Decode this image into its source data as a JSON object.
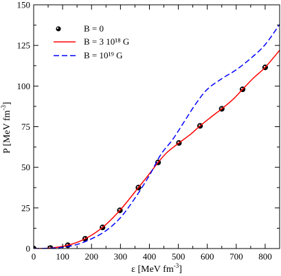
{
  "chart_data": {
    "type": "line",
    "xlabel": "ε [MeV fm⁻³]",
    "ylabel": "P [MeV fm⁻³]",
    "xlim": [
      0,
      850
    ],
    "ylim": [
      0,
      150
    ],
    "xticks": [
      0,
      100,
      200,
      300,
      400,
      500,
      600,
      700,
      800
    ],
    "yticks": [
      0,
      25,
      50,
      75,
      100,
      125,
      150
    ],
    "grid": false,
    "legend_position": "top-left",
    "series": [
      {
        "name": "B = 0",
        "style": "markers",
        "marker": "circle-dot",
        "color": "#000000",
        "x": [
          0,
          58,
          118,
          178,
          238,
          298,
          362,
          430,
          502,
          575,
          650,
          722,
          800
        ],
        "y": [
          0,
          0.3,
          2,
          6,
          13,
          23.5,
          37.5,
          53,
          65,
          75.5,
          86,
          98,
          111.5
        ]
      },
      {
        "name": "B = 3 10¹⁸ G",
        "style": "solid",
        "color": "#ff0000",
        "x": [
          0,
          58,
          118,
          178,
          238,
          298,
          362,
          400,
          430,
          460,
          502,
          540,
          575,
          610,
          650,
          690,
          722,
          760,
          800,
          850
        ],
        "y": [
          0,
          0.3,
          2,
          6,
          13,
          23.5,
          37.5,
          46,
          53,
          59,
          65,
          70,
          75.5,
          80.5,
          86,
          92,
          98,
          105,
          111.5,
          122
        ]
      },
      {
        "name": "B = 10¹⁹ G",
        "style": "dashed",
        "color": "#0000ff",
        "x": [
          0,
          58,
          100,
          150,
          200,
          250,
          300,
          350,
          400,
          440,
          480,
          520,
          560,
          600,
          650,
          700,
          750,
          800,
          850
        ],
        "y": [
          0,
          0.2,
          0.8,
          2.5,
          6,
          11,
          19,
          31,
          45,
          58,
          67,
          78,
          89,
          98,
          104.5,
          110,
          117,
          125.5,
          138
        ]
      }
    ]
  }
}
